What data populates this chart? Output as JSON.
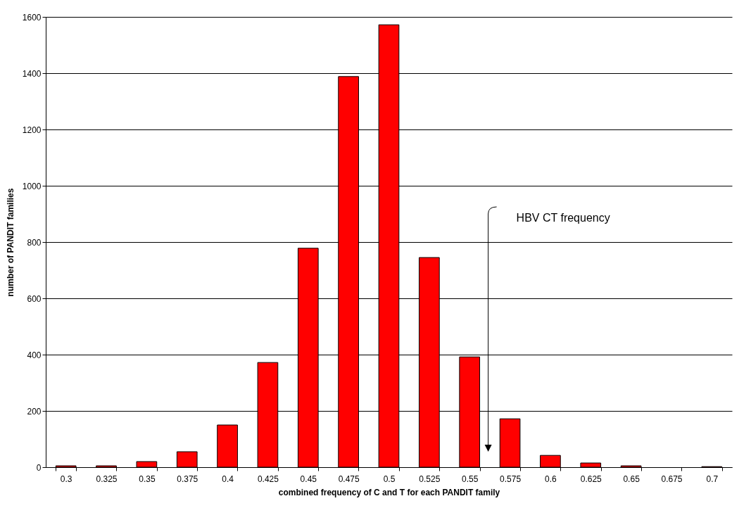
{
  "chart_data": {
    "type": "bar",
    "xlabel": "combined frequency of C and T for each PANDIT family",
    "ylabel": "number of PANDIT families",
    "categories": [
      "0.3",
      "0.325",
      "0.35",
      "0.375",
      "0.4",
      "0.425",
      "0.45",
      "0.475",
      "0.5",
      "0.525",
      "0.55",
      "0.575",
      "0.6",
      "0.625",
      "0.65",
      "0.675",
      "0.7"
    ],
    "values": [
      5,
      5,
      20,
      55,
      150,
      372,
      778,
      1388,
      1572,
      745,
      392,
      172,
      42,
      15,
      5,
      0,
      2
    ],
    "color": "#ff0000",
    "ylim": [
      0,
      1600
    ],
    "yticks": [
      0,
      200,
      400,
      600,
      800,
      1000,
      1200,
      1400,
      1600
    ],
    "grid": "y",
    "annotations": [
      "HBV CT frequency"
    ]
  }
}
